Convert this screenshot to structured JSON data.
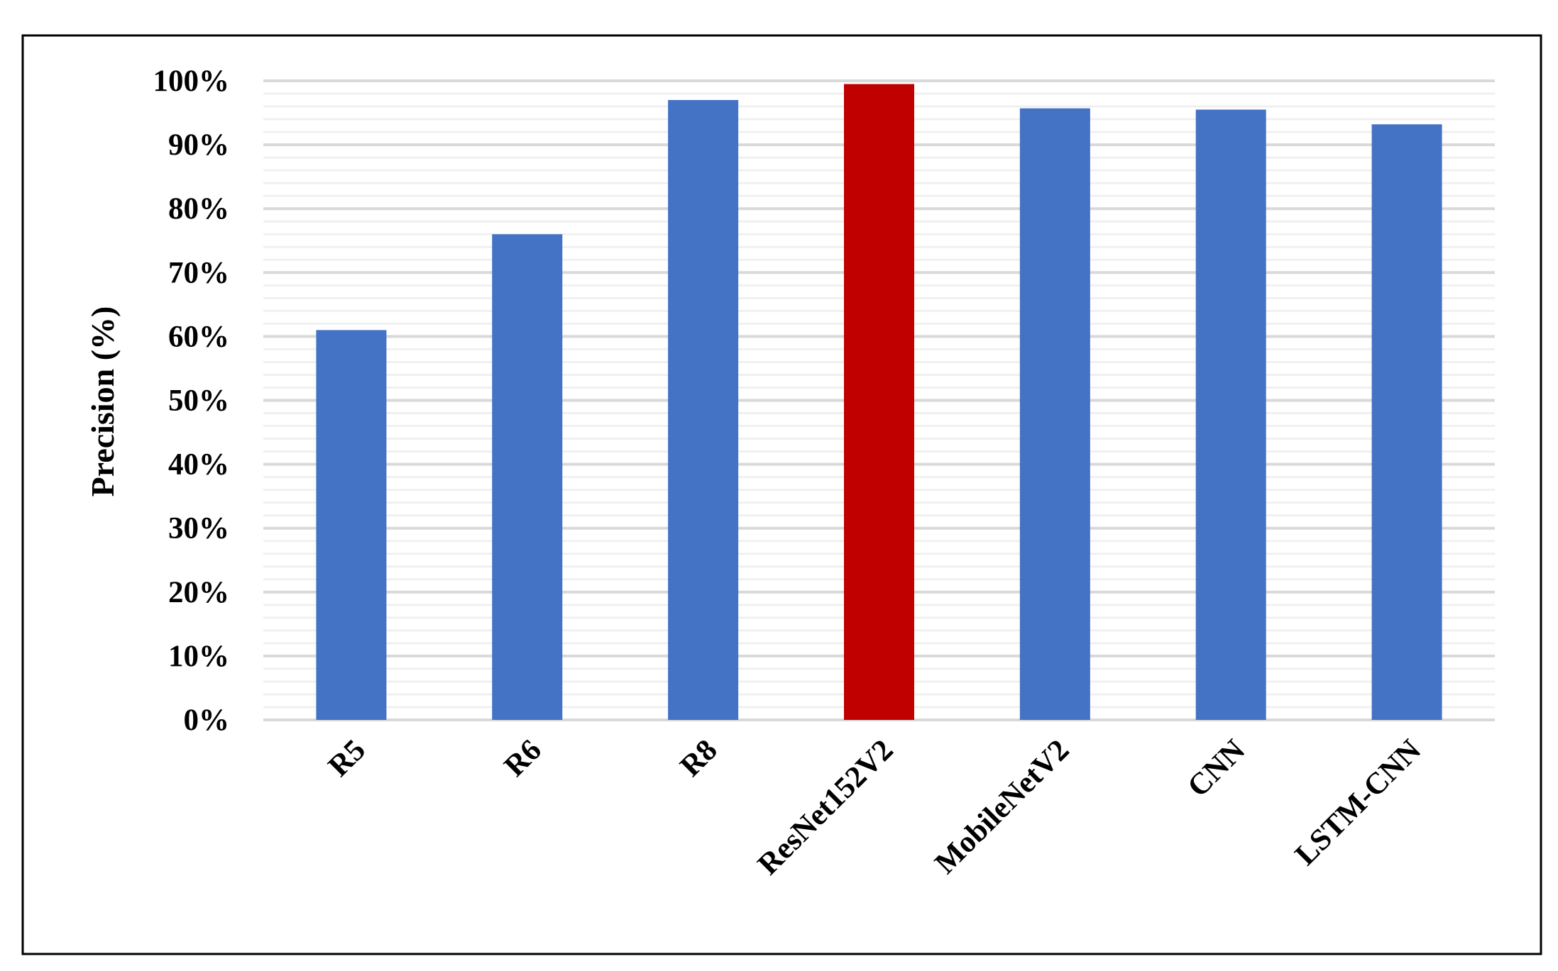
{
  "chart_data": {
    "type": "bar",
    "title": "",
    "xlabel": "",
    "ylabel": "Precision (%)",
    "ylim": [
      0,
      100
    ],
    "yticks": [
      "0%",
      "10%",
      "20%",
      "30%",
      "40%",
      "50%",
      "60%",
      "70%",
      "80%",
      "90%",
      "100%"
    ],
    "grid": true,
    "minor_grid_step": 2,
    "categories": [
      "R5",
      "R6",
      "R8",
      "ResNet152V2",
      "MobileNetV2",
      "CNN",
      "LSTM-CNN"
    ],
    "values": [
      61,
      76,
      97,
      99.5,
      95.7,
      95.5,
      93.2
    ],
    "colors": [
      "#4472C4",
      "#4472C4",
      "#4472C4",
      "#C00000",
      "#4472C4",
      "#4472C4",
      "#4472C4"
    ]
  }
}
